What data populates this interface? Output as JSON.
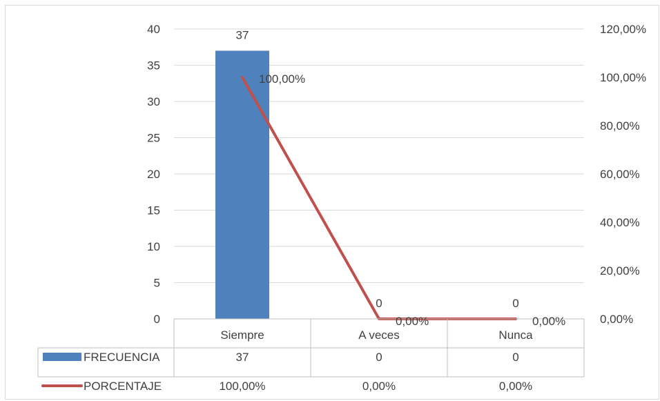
{
  "chart_data": {
    "type": "bar",
    "categories": [
      "Siempre",
      "A veces",
      "Nunca"
    ],
    "series": [
      {
        "name": "FRECUENCIA",
        "type": "bar",
        "axis": "left",
        "color": "#4f81bd",
        "values": [
          37,
          0,
          0
        ],
        "labels": [
          "37",
          "0",
          "0"
        ]
      },
      {
        "name": "PORCENTAJE",
        "type": "line",
        "axis": "right",
        "color": "#c0504d",
        "values": [
          1.0,
          0.0,
          0.0
        ],
        "labels": [
          "100,00%",
          "0,00%",
          "0,00%"
        ]
      }
    ],
    "y_left": {
      "min": 0,
      "max": 40,
      "step": 5,
      "ticks": [
        "0",
        "5",
        "10",
        "15",
        "20",
        "25",
        "30",
        "35",
        "40"
      ]
    },
    "y_right": {
      "min": 0,
      "max": 1.2,
      "step": 0.2,
      "ticks": [
        "0,00%",
        "20,00%",
        "40,00%",
        "60,00%",
        "80,00%",
        "100,00%",
        "120,00%"
      ]
    },
    "grid": true,
    "legend": "data-table-below",
    "data_table": {
      "rows": [
        {
          "series": "FRECUENCIA",
          "cells": [
            "37",
            "0",
            "0"
          ]
        },
        {
          "series": "PORCENTAJE",
          "cells": [
            "100,00%",
            "0,00%",
            "0,00%"
          ]
        }
      ]
    }
  }
}
